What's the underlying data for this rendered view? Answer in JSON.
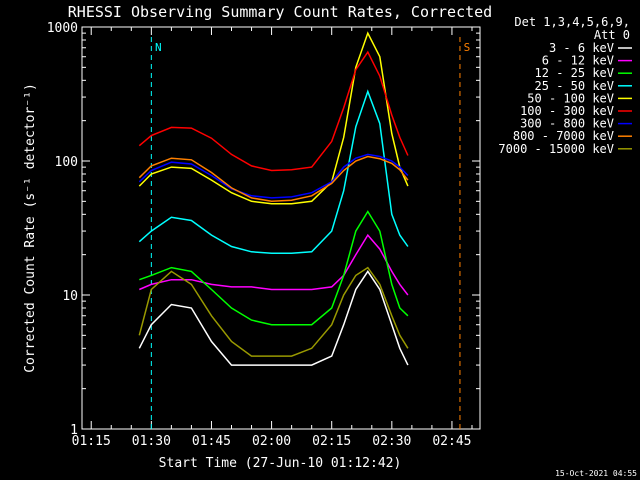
{
  "chart_data": {
    "type": "line",
    "title": "RHESSI Observing Summary Count Rates, Corrected",
    "xlabel": "Start Time (27-Jun-10 01:12:42)",
    "ylabel": "Corrected Count Rate (s⁻¹ detector⁻¹)",
    "yscale": "log",
    "xlim_minutes_utc": [
      "01:12:42",
      "02:52:00"
    ],
    "ylim": [
      1,
      1000
    ],
    "x_ticks": [
      "01:15",
      "01:30",
      "01:45",
      "02:00",
      "02:15",
      "02:30",
      "02:45"
    ],
    "y_ticks": [
      "1",
      "10",
      "100",
      "1000"
    ],
    "legend_header": [
      "Det 1,3,4,5,6,9,",
      "Att 0"
    ],
    "legend_placement": "right",
    "time_axis": [
      "01:27",
      "01:30",
      "01:35",
      "01:40",
      "01:45",
      "01:50",
      "01:55",
      "02:00",
      "02:05",
      "02:10",
      "02:15",
      "02:18",
      "02:21",
      "02:24",
      "02:27",
      "02:30",
      "02:32",
      "02:34"
    ],
    "series": [
      {
        "name": "3 - 6 keV",
        "color": "#ffffff",
        "values": [
          4,
          6,
          8.5,
          8,
          4.5,
          3,
          3,
          3,
          3,
          3,
          3.5,
          6,
          11,
          15,
          11,
          6,
          4,
          3
        ]
      },
      {
        "name": "6 - 12 keV",
        "color": "#ff00ff",
        "values": [
          11,
          12,
          13,
          13,
          12,
          11.5,
          11.5,
          11,
          11,
          11,
          11.5,
          14,
          20,
          28,
          22,
          15,
          12,
          10
        ]
      },
      {
        "name": "12 - 25 keV",
        "color": "#00ff00",
        "values": [
          13,
          14,
          16,
          15,
          11,
          8,
          6.5,
          6,
          6,
          6,
          8,
          14,
          30,
          42,
          30,
          12,
          8,
          7
        ]
      },
      {
        "name": "25 - 50 keV",
        "color": "#00ffff",
        "values": [
          25,
          30,
          38,
          36,
          28,
          23,
          21,
          20.5,
          20.5,
          21,
          30,
          60,
          180,
          330,
          190,
          40,
          28,
          23
        ]
      },
      {
        "name": "50 - 100 keV",
        "color": "#ffff00",
        "values": [
          65,
          80,
          90,
          88,
          72,
          58,
          50,
          48,
          48,
          50,
          70,
          150,
          500,
          900,
          600,
          160,
          90,
          65
        ]
      },
      {
        "name": "100 - 300 keV",
        "color": "#ff0000",
        "values": [
          130,
          155,
          178,
          176,
          148,
          112,
          92,
          85,
          86,
          90,
          140,
          250,
          480,
          650,
          430,
          220,
          150,
          110
        ]
      },
      {
        "name": "300 - 800 keV",
        "color": "#0000ff",
        "values": [
          70,
          85,
          98,
          95,
          78,
          62,
          55,
          53,
          54,
          58,
          70,
          90,
          105,
          112,
          108,
          100,
          90,
          78
        ]
      },
      {
        "name": "800 - 7000 keV",
        "color": "#ff8000",
        "values": [
          75,
          92,
          105,
          102,
          82,
          63,
          53,
          50,
          51,
          55,
          68,
          85,
          100,
          108,
          104,
          96,
          86,
          72
        ]
      },
      {
        "name": "7000 - 15000 keV",
        "color": "#999900",
        "values": [
          5,
          11,
          15,
          12,
          7,
          4.5,
          3.5,
          3.5,
          3.5,
          4,
          6,
          10,
          14,
          16,
          12,
          7,
          5,
          4
        ]
      }
    ],
    "annotations": [
      {
        "label": "N",
        "color": "#00ffff",
        "time": "01:30"
      },
      {
        "label": "S",
        "color": "#ff8000",
        "time": "02:47"
      }
    ],
    "footer_date": "15-Oct-2021 04:55"
  }
}
